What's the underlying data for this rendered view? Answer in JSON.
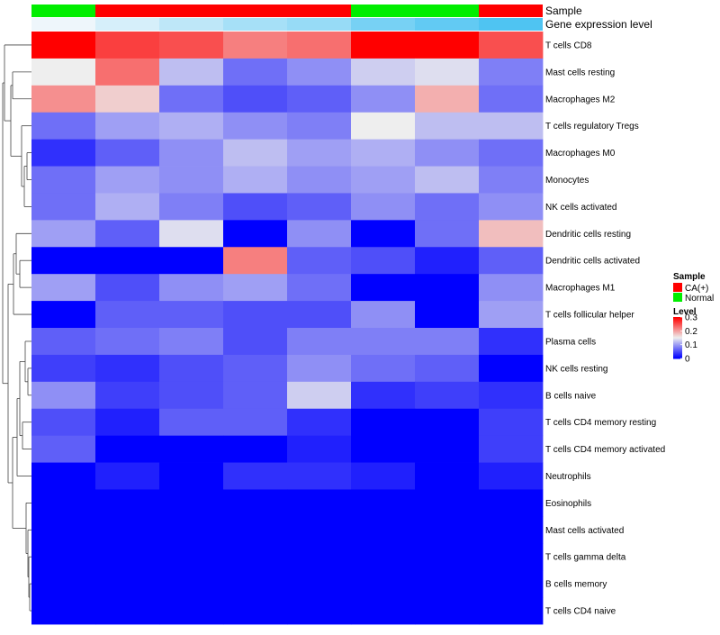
{
  "chart_data": {
    "type": "heatmap",
    "title": "",
    "rows": [
      "T cells CD8",
      "Mast cells resting",
      "Macrophages M2",
      "T cells regulatory  Tregs",
      "Macrophages M0",
      "Monocytes",
      "NK cells activated",
      "Dendritic cells resting",
      "Dendritic cells activated",
      "Macrophages M1",
      "T cells follicular helper",
      "Plasma cells",
      "NK cells resting",
      "B cells naive",
      "T cells CD4 memory resting",
      "T cells CD4 memory activated",
      "Neutrophils",
      "Eosinophils",
      "Mast cells activated",
      "T cells gamma delta",
      "B cells memory",
      "T cells CD4 naive"
    ],
    "column_count": 8,
    "column_annotations": [
      {
        "name": "Sample",
        "values": [
          "Normal",
          "CA(+)",
          "CA(+)",
          "CA(+)",
          "CA(+)",
          "Normal",
          "Normal",
          "CA(+)"
        ]
      },
      {
        "name": "Gene expression level",
        "values": [
          0.0,
          0.15,
          0.3,
          0.45,
          0.55,
          0.75,
          0.88,
          1.0
        ]
      }
    ],
    "values": [
      [
        0.3,
        0.26,
        0.25,
        0.22,
        0.23,
        0.3,
        0.3,
        0.25
      ],
      [
        0.15,
        0.23,
        0.12,
        0.07,
        0.09,
        0.13,
        0.14,
        0.08
      ],
      [
        0.21,
        0.17,
        0.07,
        0.05,
        0.06,
        0.09,
        0.19,
        0.07
      ],
      [
        0.07,
        0.1,
        0.11,
        0.09,
        0.08,
        0.15,
        0.12,
        0.12
      ],
      [
        0.03,
        0.06,
        0.09,
        0.12,
        0.1,
        0.11,
        0.09,
        0.07
      ],
      [
        0.07,
        0.1,
        0.09,
        0.11,
        0.09,
        0.1,
        0.12,
        0.08
      ],
      [
        0.07,
        0.11,
        0.08,
        0.05,
        0.06,
        0.09,
        0.07,
        0.09
      ],
      [
        0.1,
        0.06,
        0.14,
        0.0,
        0.09,
        0.0,
        0.07,
        0.18
      ],
      [
        0.0,
        0.0,
        0.0,
        0.22,
        0.06,
        0.05,
        0.02,
        0.06
      ],
      [
        0.1,
        0.05,
        0.09,
        0.1,
        0.07,
        0.0,
        0.0,
        0.09
      ],
      [
        0.0,
        0.06,
        0.06,
        0.05,
        0.05,
        0.09,
        0.0,
        0.1
      ],
      [
        0.06,
        0.07,
        0.08,
        0.05,
        0.08,
        0.08,
        0.08,
        0.03
      ],
      [
        0.04,
        0.03,
        0.05,
        0.06,
        0.09,
        0.07,
        0.06,
        0.0
      ],
      [
        0.09,
        0.04,
        0.05,
        0.06,
        0.13,
        0.03,
        0.04,
        0.03
      ],
      [
        0.05,
        0.02,
        0.06,
        0.06,
        0.03,
        0.0,
        0.0,
        0.04
      ],
      [
        0.06,
        0.0,
        0.0,
        0.0,
        0.02,
        0.0,
        0.0,
        0.04
      ],
      [
        0.0,
        0.02,
        0.0,
        0.03,
        0.03,
        0.02,
        0.0,
        0.02
      ],
      [
        0.0,
        0.0,
        0.0,
        0.0,
        0.0,
        0.0,
        0.0,
        0.0
      ],
      [
        0.0,
        0.0,
        0.0,
        0.0,
        0.0,
        0.0,
        0.0,
        0.0
      ],
      [
        0.0,
        0.0,
        0.0,
        0.0,
        0.0,
        0.0,
        0.0,
        0.0
      ],
      [
        0.0,
        0.0,
        0.0,
        0.0,
        0.0,
        0.0,
        0.0,
        0.0
      ],
      [
        0.0,
        0.0,
        0.0,
        0.0,
        0.0,
        0.0,
        0.0,
        0.0
      ]
    ],
    "color_scale": {
      "min": 0,
      "max": 0.3,
      "low_color": "#0000ff",
      "mid_color": "#eeeeee",
      "high_color": "#ff0000",
      "mid_value": 0.15
    },
    "row_dendrogram": true,
    "legend": {
      "placement": "right",
      "sample": {
        "title": "Sample",
        "entries": [
          {
            "label": "CA(+)",
            "color": "#ff0000"
          },
          {
            "label": "Normal",
            "color": "#00ee00"
          }
        ]
      },
      "level": {
        "title": "Level",
        "ticks": [
          "0.3",
          "0.2",
          "0.1",
          "0"
        ]
      }
    }
  }
}
